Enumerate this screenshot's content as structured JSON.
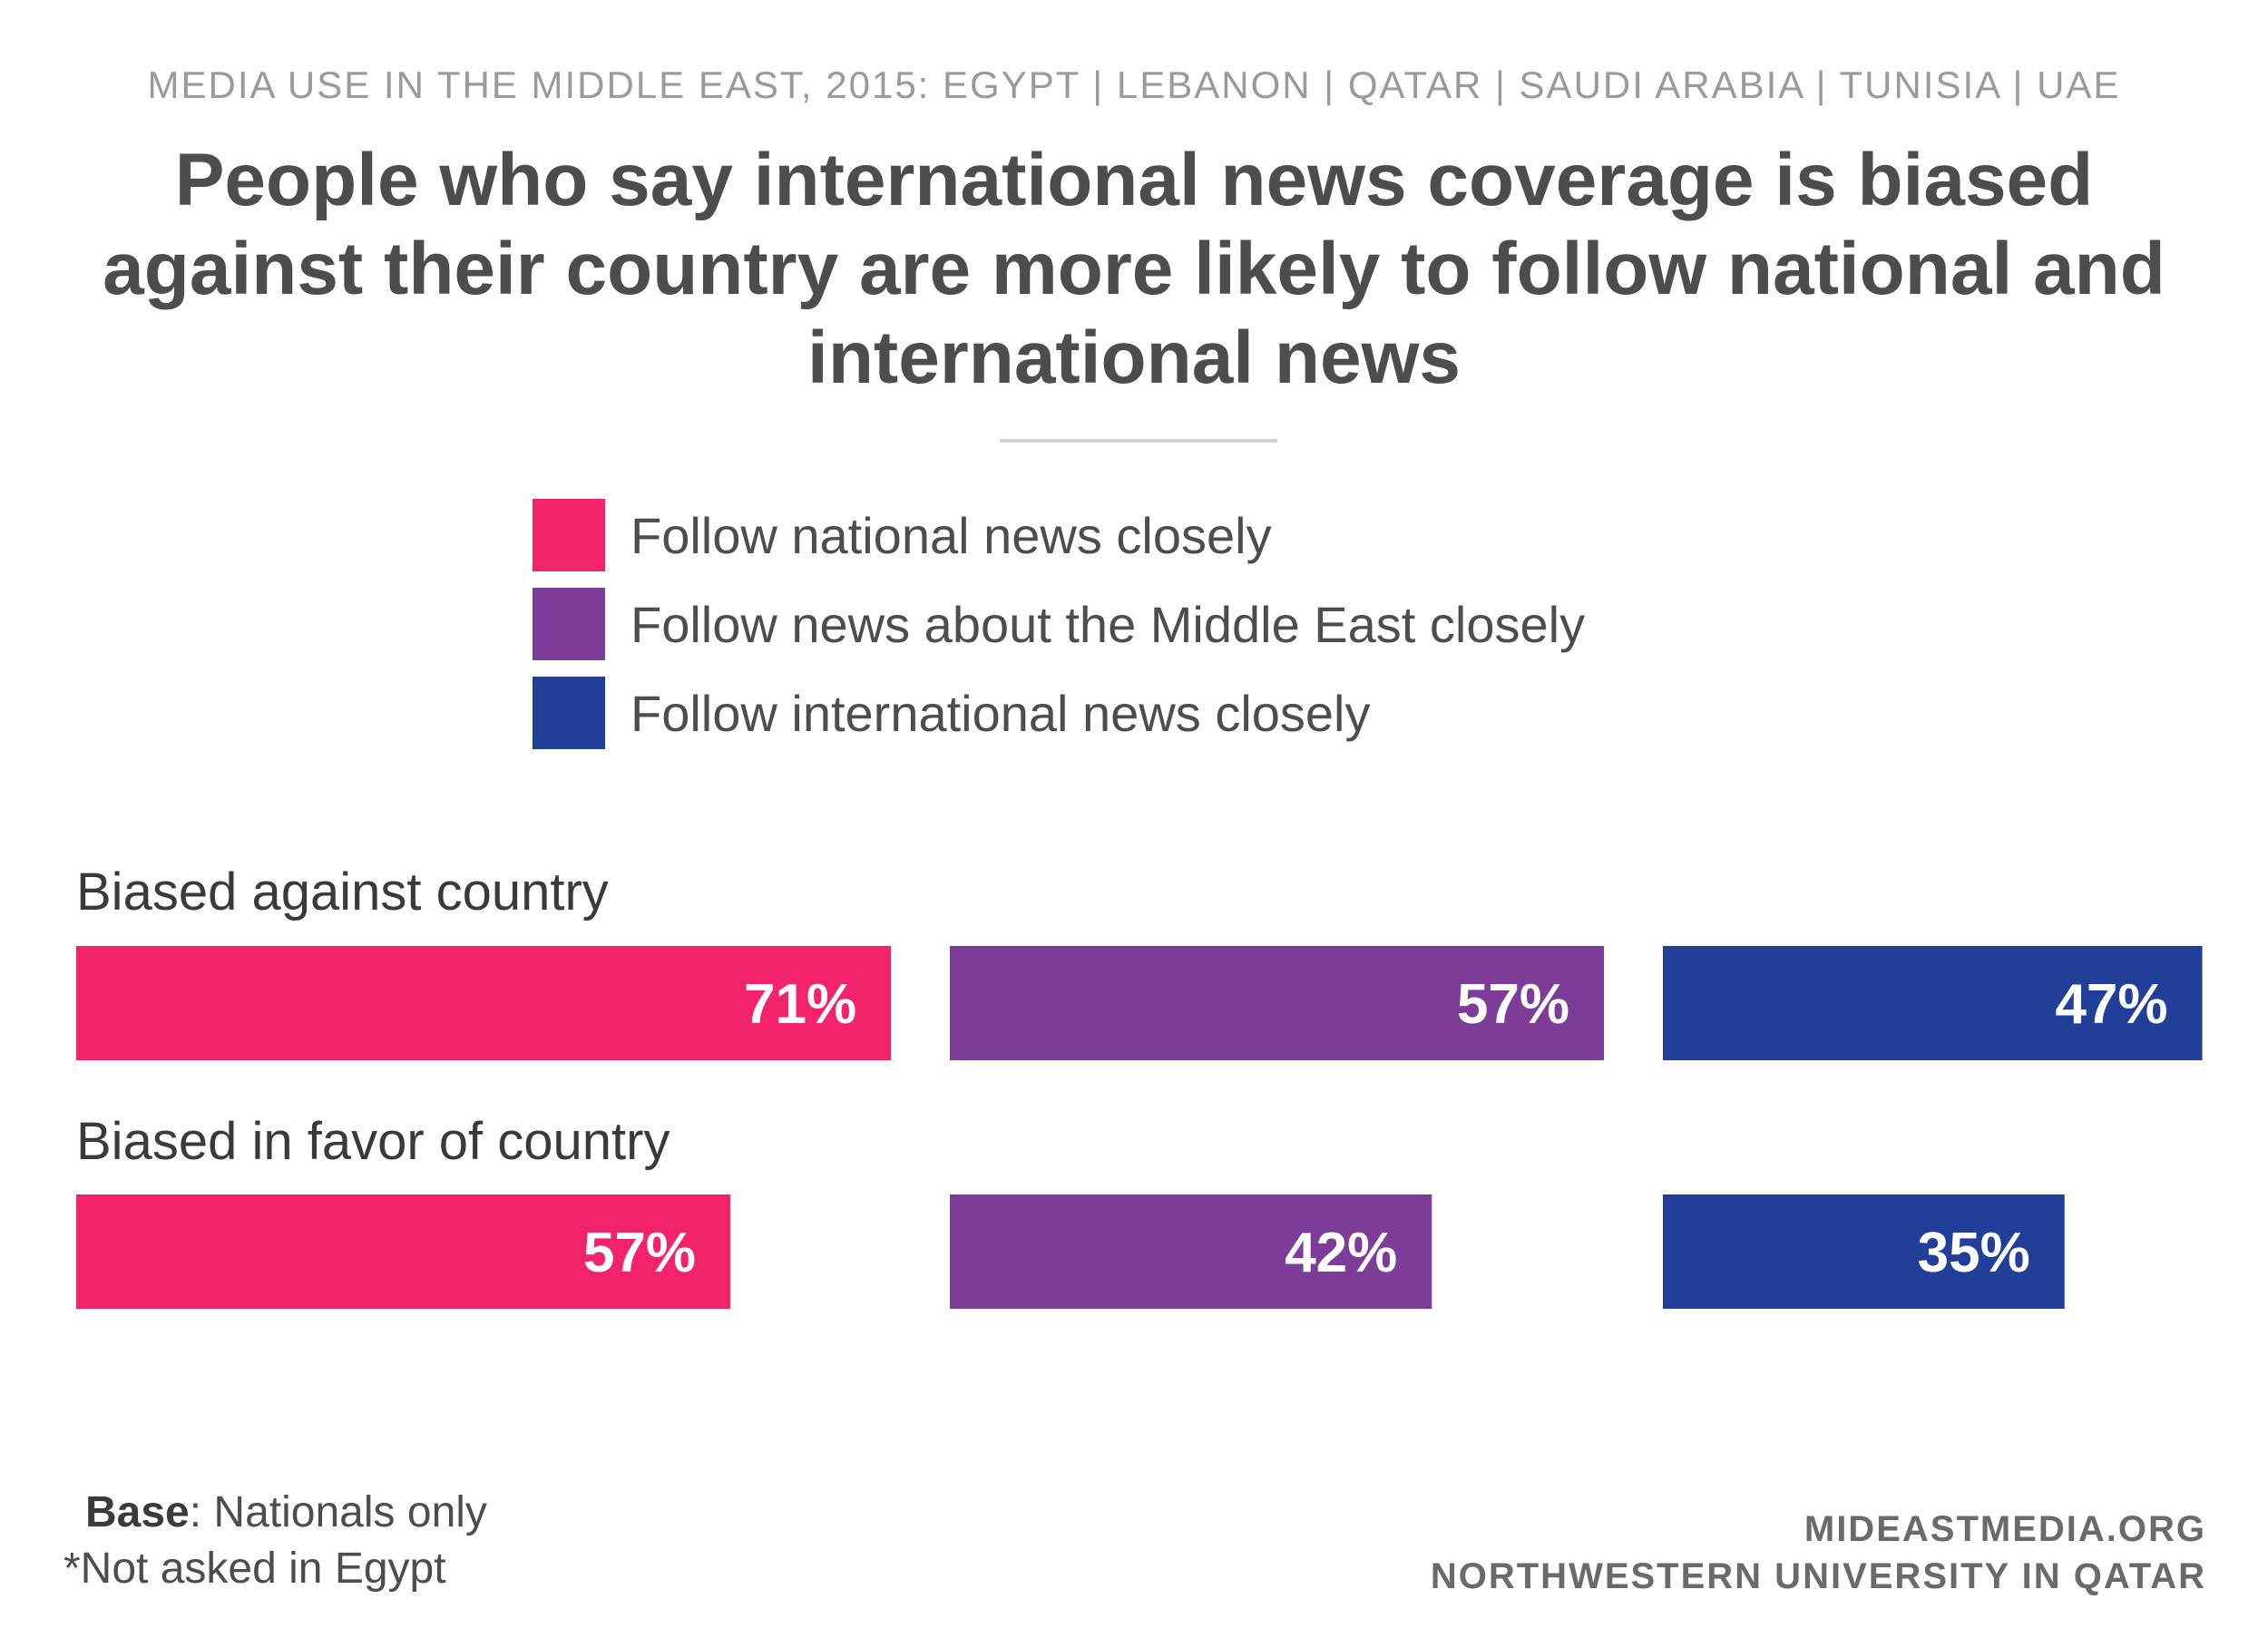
{
  "header": {
    "supertitle": "MEDIA USE IN THE MIDDLE EAST, 2015: EGYPT | LEBANON | QATAR | SAUDI ARABIA | TUNISIA | UAE",
    "title": "People who say international news coverage is biased against their country are more likely to follow national and international news"
  },
  "colors": {
    "national": "#f2236a",
    "middle_east": "#7d3c98",
    "international": "#213f99"
  },
  "chart_data": {
    "type": "bar",
    "orientation": "horizontal",
    "categories": [
      "Biased against country",
      "Biased in favor of country"
    ],
    "series": [
      {
        "name": "Follow national news closely",
        "color": "#f2236a",
        "values": [
          71,
          57
        ],
        "labels": [
          "71%",
          "57%"
        ]
      },
      {
        "name": "Follow news about the Middle East closely",
        "color": "#7d3c98",
        "values": [
          57,
          42
        ],
        "labels": [
          "57%",
          "42%"
        ]
      },
      {
        "name": "Follow international news closely",
        "color": "#213f99",
        "values": [
          47,
          35
        ],
        "labels": [
          "47%",
          "35%"
        ]
      }
    ],
    "unit": "%",
    "legend_position": "top"
  },
  "footer": {
    "base_label": "Base",
    "base_text": ": Nationals only",
    "note": "*Not asked in Egypt",
    "credit_line1": "MIDEASTMEDIA.ORG",
    "credit_line2": "NORTHWESTERN UNIVERSITY IN QATAR"
  }
}
